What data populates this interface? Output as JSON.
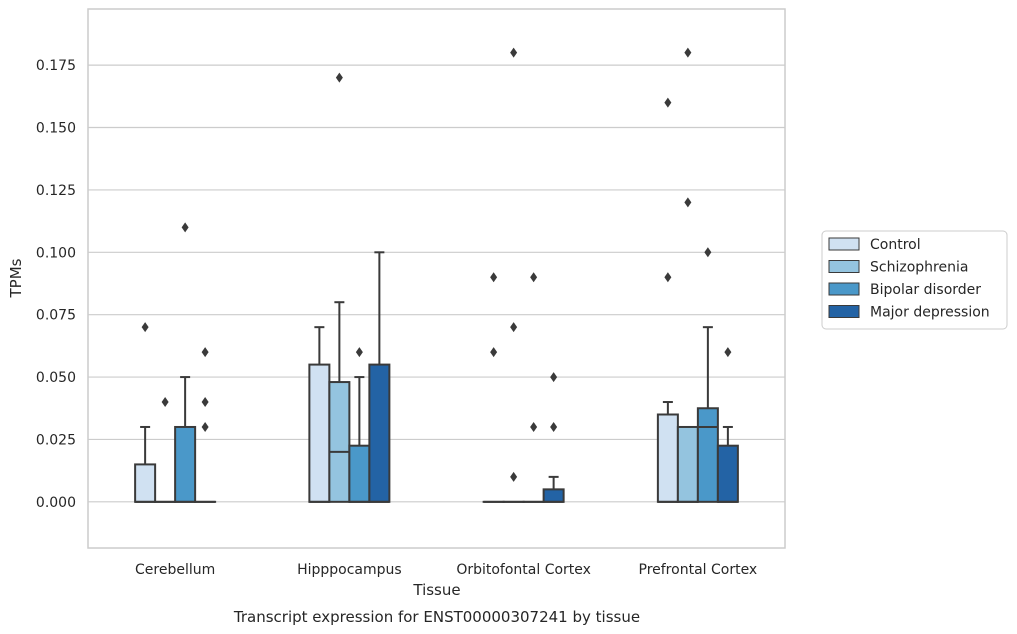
{
  "chart_data": {
    "type": "box",
    "title": "",
    "caption": "Transcript expression for ENST00000307241 by tissue",
    "xlabel": "Tissue",
    "ylabel": "TPMs",
    "ylim": [
      -0.0185,
      0.1975
    ],
    "yticks": [
      "0.000",
      "0.025",
      "0.050",
      "0.075",
      "0.100",
      "0.125",
      "0.150",
      "0.175"
    ],
    "categories": [
      "Cerebellum",
      "Hipppocampus",
      "Orbitofontal Cortex",
      "Prefrontal Cortex"
    ],
    "grid": "horizontal",
    "legend_position": "right",
    "series": [
      {
        "name": "Control",
        "color": "#d0e1f2",
        "boxes": [
          {
            "q1": 0.0,
            "median": 0.0,
            "q3": 0.015,
            "whisker_low": 0.0,
            "whisker_high": 0.03,
            "outliers": [
              0.07
            ]
          },
          {
            "q1": 0.0,
            "median": 0.0,
            "q3": 0.055,
            "whisker_low": 0.0,
            "whisker_high": 0.07,
            "outliers": []
          },
          {
            "q1": 0.0,
            "median": 0.0,
            "q3": 0.0,
            "whisker_low": 0.0,
            "whisker_high": 0.0,
            "outliers": [
              0.06,
              0.09
            ]
          },
          {
            "q1": 0.0,
            "median": 0.0,
            "q3": 0.035,
            "whisker_low": 0.0,
            "whisker_high": 0.04,
            "outliers": [
              0.09,
              0.16
            ]
          }
        ]
      },
      {
        "name": "Schizophrenia",
        "color": "#94c4df",
        "boxes": [
          {
            "q1": 0.0,
            "median": 0.0,
            "q3": 0.0,
            "whisker_low": 0.0,
            "whisker_high": 0.0,
            "outliers": [
              0.04
            ]
          },
          {
            "q1": 0.0,
            "median": 0.02,
            "q3": 0.048,
            "whisker_low": 0.0,
            "whisker_high": 0.08,
            "outliers": [
              0.17
            ]
          },
          {
            "q1": 0.0,
            "median": 0.0,
            "q3": 0.0,
            "whisker_low": 0.0,
            "whisker_high": 0.0,
            "outliers": [
              0.01,
              0.07,
              0.18
            ]
          },
          {
            "q1": 0.0,
            "median": 0.0,
            "q3": 0.03,
            "whisker_low": 0.0,
            "whisker_high": 0.03,
            "outliers": [
              0.12,
              0.18
            ]
          }
        ]
      },
      {
        "name": "Bipolar disorder",
        "color": "#4a98c9",
        "boxes": [
          {
            "q1": 0.0,
            "median": 0.0,
            "q3": 0.03,
            "whisker_low": 0.0,
            "whisker_high": 0.05,
            "outliers": [
              0.11
            ]
          },
          {
            "q1": 0.0,
            "median": 0.0,
            "q3": 0.0225,
            "whisker_low": 0.0,
            "whisker_high": 0.05,
            "outliers": [
              0.06
            ]
          },
          {
            "q1": 0.0,
            "median": 0.0,
            "q3": 0.0,
            "whisker_low": 0.0,
            "whisker_high": 0.0,
            "outliers": [
              0.03,
              0.09
            ]
          },
          {
            "q1": 0.0,
            "median": 0.03,
            "q3": 0.0375,
            "whisker_low": 0.0,
            "whisker_high": 0.07,
            "outliers": [
              0.1
            ]
          }
        ]
      },
      {
        "name": "Major depression",
        "color": "#2363a5",
        "boxes": [
          {
            "q1": 0.0,
            "median": 0.0,
            "q3": 0.0,
            "whisker_low": 0.0,
            "whisker_high": 0.0,
            "outliers": [
              0.03,
              0.04,
              0.06
            ]
          },
          {
            "q1": 0.0,
            "median": 0.0,
            "q3": 0.055,
            "whisker_low": 0.0,
            "whisker_high": 0.1,
            "outliers": []
          },
          {
            "q1": 0.0,
            "median": 0.0,
            "q3": 0.005,
            "whisker_low": 0.0,
            "whisker_high": 0.01,
            "outliers": [
              0.03,
              0.05
            ]
          },
          {
            "q1": 0.0,
            "median": 0.0,
            "q3": 0.0225,
            "whisker_low": 0.0,
            "whisker_high": 0.03,
            "outliers": [
              0.06
            ]
          }
        ]
      }
    ]
  }
}
